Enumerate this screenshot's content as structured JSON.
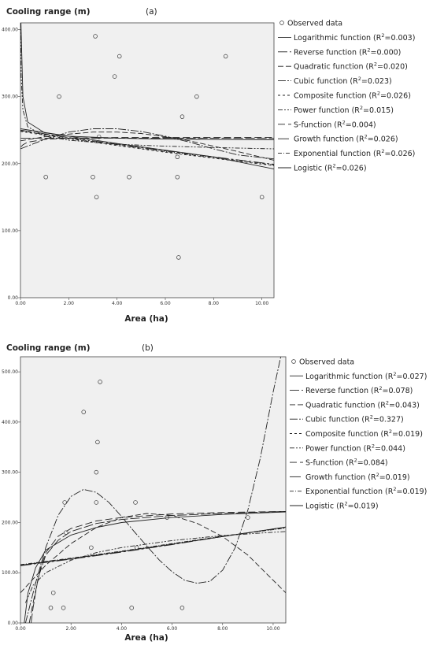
{
  "chart_data": [
    {
      "type": "scatter",
      "panel_label": "(a)",
      "ylabel": "Cooling range (m)",
      "xlabel": "Area (ha)",
      "xlim": [
        0,
        10.5
      ],
      "ylim": [
        0,
        410
      ],
      "xticks": [
        {
          "value": 0,
          "label": "0.00"
        },
        {
          "value": 2,
          "label": "2.00"
        },
        {
          "value": 4,
          "label": "4.00"
        },
        {
          "value": 6,
          "label": "6.00"
        },
        {
          "value": 8,
          "label": "8.00"
        },
        {
          "value": 10,
          "label": "10.00"
        }
      ],
      "yticks": [
        {
          "value": 0,
          "label": "0.00"
        },
        {
          "value": 100,
          "label": "100.00"
        },
        {
          "value": 200,
          "label": "200.00"
        },
        {
          "value": 300,
          "label": "300.00"
        },
        {
          "value": 400,
          "label": "400.00"
        }
      ],
      "grid": false,
      "legend_position": "right",
      "observed": {
        "name": "Observed data",
        "x": [
          1.05,
          1.6,
          3.0,
          3.1,
          3.15,
          3.25,
          3.9,
          4.1,
          4.5,
          6.5,
          6.5,
          6.55,
          6.7,
          7.3,
          8.5,
          10.0
        ],
        "y": [
          180,
          300,
          180,
          390,
          150,
          240,
          330,
          360,
          180,
          180,
          210,
          60,
          270,
          300,
          360,
          150
        ]
      },
      "series": [
        {
          "name": "Logarithmic function",
          "r2_label": "R",
          "r2_sup": "2",
          "r2_value": "=0.003",
          "dash": "none",
          "x": [
            0.02,
            0.1,
            0.3,
            1,
            2,
            4,
            6,
            8,
            10.5
          ],
          "y": [
            410,
            300,
            262,
            246,
            241,
            238,
            236.5,
            236,
            235.5
          ]
        },
        {
          "name": "Reverse function",
          "r2_label": "R",
          "r2_sup": "2",
          "r2_value": "=0.000",
          "dash": "12 3",
          "x": [
            0.02,
            0.1,
            0.3,
            1,
            2,
            4,
            6,
            8,
            10.5
          ],
          "y": [
            238,
            238,
            238,
            238,
            238,
            238,
            238,
            238,
            238
          ]
        },
        {
          "name": "Quadratic function",
          "r2_label": "R",
          "r2_sup": "2",
          "r2_value": "=0.020",
          "dash": "7 3",
          "x": [
            0,
            1,
            2,
            3,
            4,
            5,
            6,
            7,
            8,
            9,
            10.5
          ],
          "y": [
            234,
            240,
            244,
            247,
            247,
            245,
            240,
            234,
            226,
            218,
            205
          ]
        },
        {
          "name": "Cubic function",
          "r2_label": "R",
          "r2_sup": "2",
          "r2_value": "=0.023",
          "dash": "10 2 2 2",
          "x": [
            0,
            1,
            2,
            3,
            4,
            5,
            6,
            7,
            8,
            9,
            10.5
          ],
          "y": [
            222,
            236,
            247,
            252,
            252,
            248,
            241,
            232,
            222,
            213,
            207
          ]
        },
        {
          "name": "Composite function",
          "r2_label": "R",
          "r2_sup": "2",
          "r2_value": "=0.026",
          "dash": "3 3",
          "x": [
            0,
            2,
            4,
            6,
            8,
            10.5
          ],
          "y": [
            248,
            237,
            227,
            217,
            208,
            197
          ]
        },
        {
          "name": "Power function",
          "r2_label": "R",
          "r2_sup": "2",
          "r2_value": "=0.015",
          "dash": "6 2 2 2 2 2",
          "x": [
            0.01,
            0.03,
            0.1,
            0.3,
            1,
            2,
            4,
            6,
            8,
            10.5
          ],
          "y": [
            410,
            330,
            280,
            255,
            241,
            235,
            229,
            226,
            224,
            222
          ]
        },
        {
          "name": "S-function",
          "r2_label": "R",
          "r2_sup": "2",
          "r2_value": "=0.004",
          "dash": "9 4",
          "x": [
            0.02,
            0.1,
            0.3,
            1,
            2,
            4,
            6,
            8,
            10.5
          ],
          "y": [
            225,
            228,
            232,
            236,
            238,
            239,
            239,
            239,
            239
          ]
        },
        {
          "name": "Growth function",
          "r2_label": "R",
          "r2_sup": "2",
          "r2_value": "=0.026",
          "dash": "14 3 3 3",
          "x": [
            0,
            2,
            4,
            6,
            8,
            10.5
          ],
          "y": [
            250,
            239,
            229,
            219,
            210,
            199
          ]
        },
        {
          "name": "Exponential function",
          "r2_label": "R",
          "r2_sup": "2",
          "r2_value": "=0.026",
          "dash": "5 2 1 2",
          "x": [
            0,
            2,
            4,
            6,
            8,
            10.5
          ],
          "y": [
            249,
            238,
            228,
            218,
            209,
            198
          ]
        },
        {
          "name": "Logistic",
          "r2_label": "R",
          "r2_sup": "2",
          "r2_value": "=0.026",
          "dash": "none",
          "x": [
            0,
            2,
            4,
            6,
            8,
            10.5
          ],
          "y": [
            252,
            241,
            230,
            220,
            210,
            192
          ]
        }
      ]
    },
    {
      "type": "scatter",
      "panel_label": "(b)",
      "ylabel": "Cooling range (m)",
      "xlabel": "Area (ha)",
      "xlim": [
        0,
        10.5
      ],
      "ylim": [
        0,
        530
      ],
      "xticks": [
        {
          "value": 0,
          "label": "0.00"
        },
        {
          "value": 2,
          "label": "2.00"
        },
        {
          "value": 4,
          "label": "4.00"
        },
        {
          "value": 6,
          "label": "6.00"
        },
        {
          "value": 8,
          "label": "8.00"
        },
        {
          "value": 10,
          "label": "10.00"
        }
      ],
      "yticks": [
        {
          "value": 0,
          "label": "0.00"
        },
        {
          "value": 100,
          "label": "100.00"
        },
        {
          "value": 200,
          "label": "200.00"
        },
        {
          "value": 300,
          "label": "300.00"
        },
        {
          "value": 400,
          "label": "400.00"
        },
        {
          "value": 500,
          "label": "500.00"
        }
      ],
      "grid": false,
      "legend_position": "right",
      "observed": {
        "name": "Observed data",
        "x": [
          1.2,
          1.3,
          1.7,
          1.75,
          1.8,
          2.5,
          2.8,
          3.0,
          3.0,
          3.05,
          3.15,
          4.4,
          4.6,
          4.55,
          5.8,
          6.4,
          9.0
        ],
        "y": [
          30,
          60,
          30,
          240,
          180,
          420,
          150,
          300,
          240,
          360,
          480,
          30,
          150,
          240,
          210,
          30,
          210
        ]
      },
      "series": [
        {
          "name": "Logarithmic function",
          "r2_label": "R",
          "r2_sup": "2",
          "r2_value": "=0.027",
          "dash": "none",
          "x": [
            0.15,
            0.3,
            0.6,
            1,
            2,
            3,
            4,
            6,
            8,
            10.5
          ],
          "y": [
            0,
            60,
            110,
            145,
            175,
            190,
            200,
            210,
            216,
            221
          ]
        },
        {
          "name": "Reverse function",
          "r2_label": "R",
          "r2_sup": "2",
          "r2_value": "=0.078",
          "dash": "12 3",
          "x": [
            0.42,
            0.5,
            0.7,
            1,
            1.5,
            2,
            3,
            4,
            6,
            8,
            10.5
          ],
          "y": [
            0,
            30,
            90,
            135,
            165,
            182,
            198,
            206,
            214,
            218,
            222
          ]
        },
        {
          "name": "Quadratic function",
          "r2_label": "R",
          "r2_sup": "2",
          "r2_value": "=0.043",
          "dash": "7 3",
          "x": [
            0,
            1,
            2,
            3,
            4,
            5,
            6,
            7,
            8,
            9,
            10.5
          ],
          "y": [
            60,
            115,
            158,
            190,
            210,
            218,
            214,
            198,
            172,
            135,
            60
          ]
        },
        {
          "name": "Cubic function",
          "r2_label": "R",
          "r2_sup": "2",
          "r2_value": "=0.327",
          "dash": "10 2 2 2",
          "x": [
            0.2,
            0.6,
            1,
            1.5,
            2,
            2.5,
            3,
            3.5,
            4,
            4.5,
            5,
            5.5,
            6,
            6.5,
            7,
            7.5,
            8,
            8.5,
            9,
            9.5,
            10,
            10.3
          ],
          "y": [
            0,
            80,
            150,
            215,
            252,
            266,
            260,
            240,
            212,
            182,
            153,
            125,
            102,
            85,
            79,
            83,
            105,
            150,
            225,
            330,
            460,
            530
          ]
        },
        {
          "name": "Composite function",
          "r2_label": "R",
          "r2_sup": "2",
          "r2_value": "=0.019",
          "dash": "3 3",
          "x": [
            0,
            2,
            4,
            6,
            8,
            10.5
          ],
          "y": [
            115,
            128,
            142,
            157,
            172,
            190
          ]
        },
        {
          "name": "Power function",
          "r2_label": "R",
          "r2_sup": "2",
          "r2_value": "=0.044",
          "dash": "6 2 2 2 2 2",
          "x": [
            0.2,
            0.5,
            1,
            2,
            3,
            4,
            6,
            8,
            10.5
          ],
          "y": [
            40,
            75,
            100,
            125,
            140,
            150,
            164,
            174,
            182
          ]
        },
        {
          "name": "S-function",
          "r2_label": "R",
          "r2_sup": "2",
          "r2_value": "=0.084",
          "dash": "9 4",
          "x": [
            0.35,
            0.5,
            0.8,
            1,
            1.5,
            2,
            3,
            4,
            6,
            8,
            10.5
          ],
          "y": [
            0,
            40,
            110,
            140,
            173,
            188,
            203,
            210,
            217,
            220,
            222
          ]
        },
        {
          "name": "Growth function",
          "r2_label": "R",
          "r2_sup": "2",
          "r2_value": "=0.019",
          "dash": "14 3 3 3",
          "x": [
            0,
            2,
            4,
            6,
            8,
            10.5
          ],
          "y": [
            114,
            127,
            141,
            156,
            172,
            191
          ]
        },
        {
          "name": "Exponential function",
          "r2_label": "R",
          "r2_sup": "2",
          "r2_value": "=0.019",
          "dash": "5 2 1 2",
          "x": [
            0,
            2,
            4,
            6,
            8,
            10.5
          ],
          "y": [
            116,
            129,
            143,
            158,
            173,
            189
          ]
        },
        {
          "name": "Logistic",
          "r2_label": "R",
          "r2_sup": "2",
          "r2_value": "=0.019",
          "dash": "none",
          "x": [
            0,
            2,
            4,
            6,
            8,
            10.5
          ],
          "y": [
            115,
            128,
            142,
            157,
            172,
            191
          ]
        }
      ]
    }
  ]
}
